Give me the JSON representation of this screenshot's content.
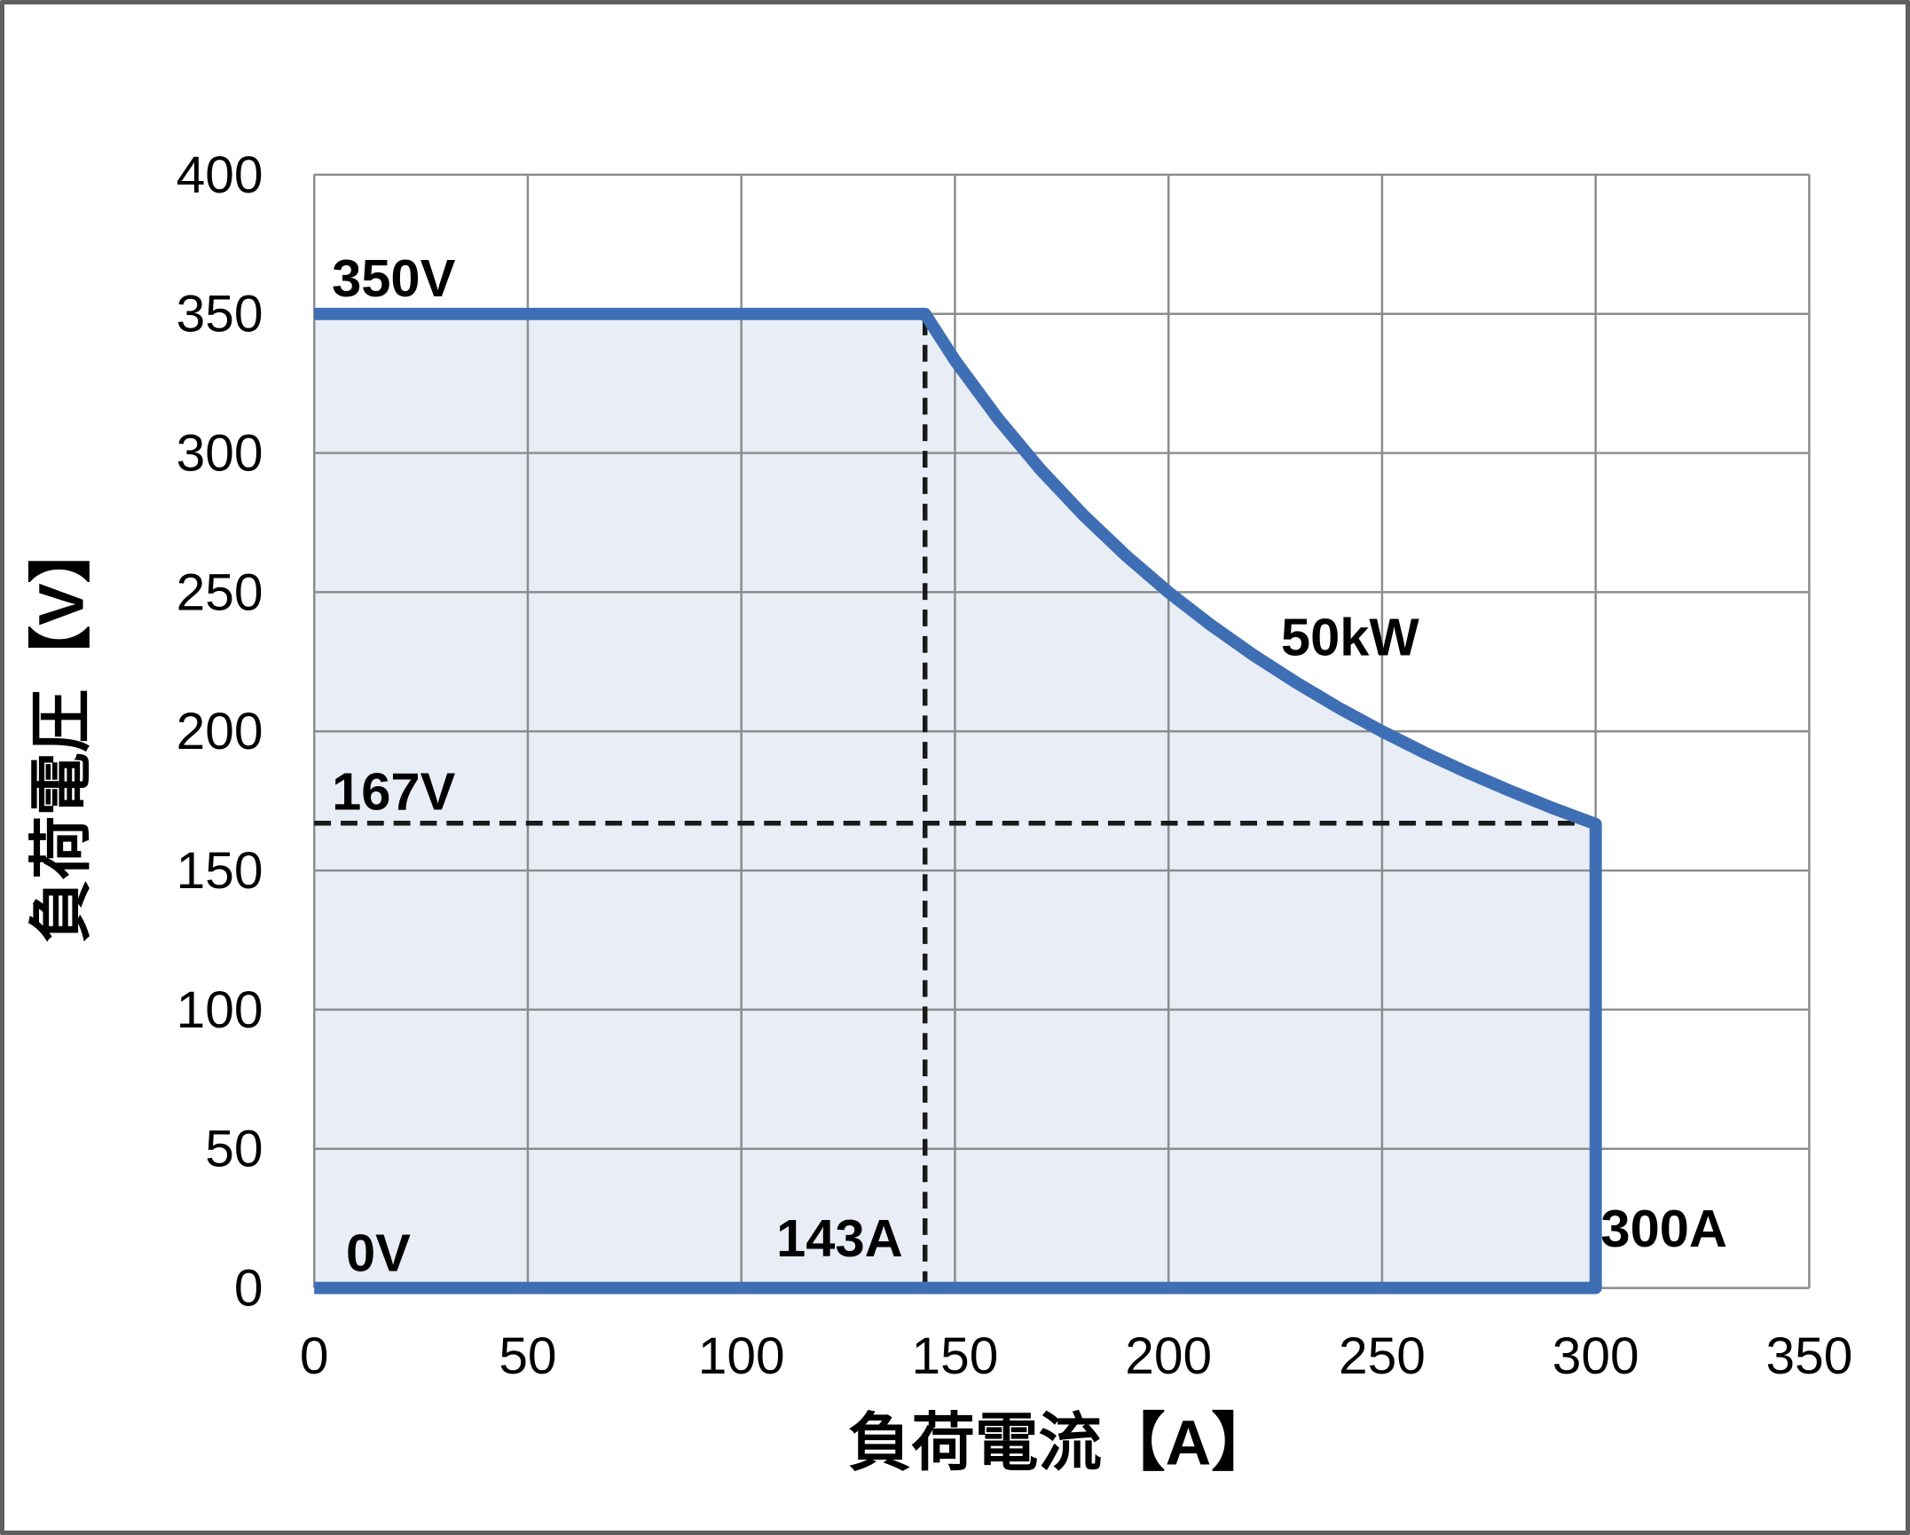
{
  "chart_data": {
    "type": "area",
    "title": "",
    "xlabel": "負荷電流【A】",
    "ylabel": "負荷電圧【V】",
    "xlim": [
      0,
      350
    ],
    "ylim": [
      0,
      400
    ],
    "xticks": [
      0,
      50,
      100,
      150,
      200,
      250,
      300,
      350
    ],
    "yticks": [
      0,
      50,
      100,
      150,
      200,
      250,
      300,
      350,
      400
    ],
    "grid": true,
    "legend": "none",
    "series": [
      {
        "name": "operating-area-boundary",
        "max_voltage_v": 350,
        "max_current_a": 300,
        "power_limit_kw": 50,
        "points": [
          [
            0,
            350
          ],
          [
            143,
            350
          ],
          [
            150,
            333.3
          ],
          [
            160,
            312.5
          ],
          [
            170,
            294.1
          ],
          [
            180,
            277.8
          ],
          [
            190,
            263.2
          ],
          [
            200,
            250.0
          ],
          [
            210,
            238.1
          ],
          [
            220,
            227.3
          ],
          [
            230,
            217.4
          ],
          [
            240,
            208.3
          ],
          [
            250,
            200.0
          ],
          [
            260,
            192.3
          ],
          [
            270,
            185.2
          ],
          [
            280,
            178.6
          ],
          [
            290,
            172.4
          ],
          [
            300,
            166.7
          ],
          [
            300,
            0
          ],
          [
            0,
            0
          ]
        ]
      }
    ],
    "reference_lines": [
      {
        "name": "current-143A",
        "orientation": "vertical",
        "x": 143,
        "y_from": 0,
        "y_to": 350
      },
      {
        "name": "voltage-167V",
        "orientation": "horizontal",
        "y": 167,
        "x_from": 0,
        "x_to": 300
      }
    ],
    "annotations": [
      {
        "text": "350V",
        "x": 18.6,
        "y": 363
      },
      {
        "text": "167V",
        "x": 18.6,
        "y": 178.5
      },
      {
        "text": "0V",
        "x": 15,
        "y": 12.7
      },
      {
        "text": "143A",
        "x": 123,
        "y": 18
      },
      {
        "text": "300A",
        "x": 316,
        "y": 21.5
      },
      {
        "text": "50kW",
        "x": 242.5,
        "y": 234
      }
    ]
  },
  "colors": {
    "boundary_line": "#3E6FB5",
    "area_fill": "#E9EDF6",
    "gridline": "#8C8C8C",
    "dashed_reference": "#1A1A1A",
    "text": "#000000",
    "frame_border": "#5F5F5F",
    "background": "#FFFFFF"
  }
}
